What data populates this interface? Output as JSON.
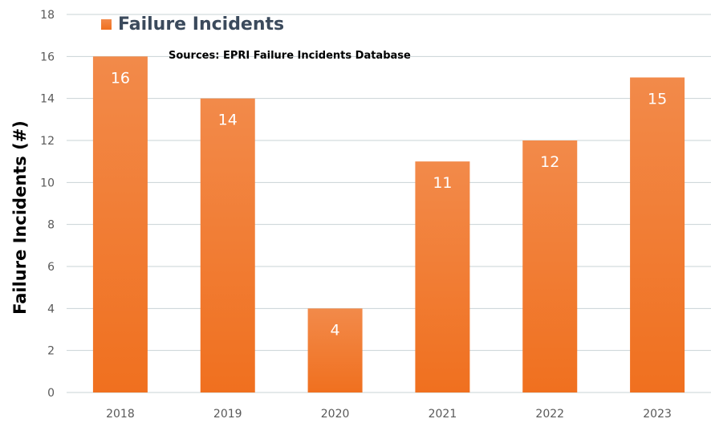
{
  "chart_data": {
    "type": "bar",
    "categories": [
      "2018",
      "2019",
      "2020",
      "2021",
      "2022",
      "2023"
    ],
    "series": [
      {
        "name": "Failure Incidents",
        "values": [
          16,
          14,
          4,
          11,
          12,
          15
        ]
      }
    ],
    "title": "",
    "subtitle": "Sources: EPRI Failure Incidents Database",
    "xlabel": "",
    "ylabel": "Failure Incidents (#)",
    "ylim": [
      0,
      18
    ],
    "yticks": [
      0,
      2,
      4,
      6,
      8,
      10,
      12,
      14,
      16,
      18
    ],
    "data_labels": [
      "16",
      "14",
      "4",
      "11",
      "12",
      "15"
    ],
    "grid": true,
    "legend_position": "top-left",
    "colors": {
      "bar_top": "#f28a4a",
      "bar_bottom": "#f0701f",
      "grid": "#c9d3d6",
      "tick_text": "#595959"
    }
  }
}
